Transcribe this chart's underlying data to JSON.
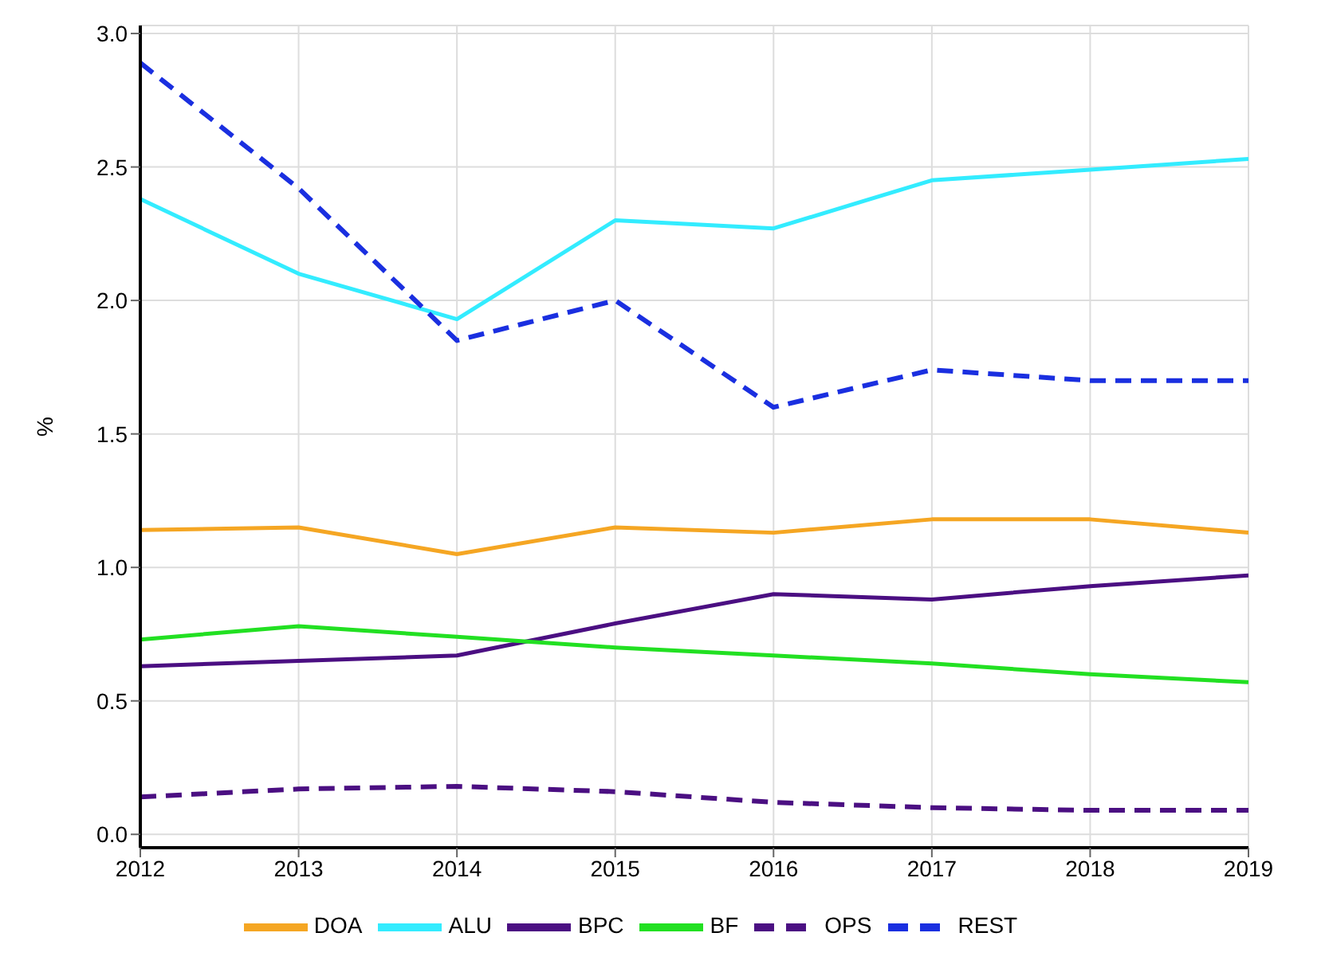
{
  "chart_data": {
    "type": "line",
    "ylabel": "%",
    "x": [
      2012,
      2013,
      2014,
      2015,
      2016,
      2017,
      2018,
      2019
    ],
    "xlim": [
      2012,
      2019
    ],
    "xticks": [
      2012,
      2013,
      2014,
      2015,
      2016,
      2017,
      2018,
      2019
    ],
    "ylim": [
      -0.05,
      3.03
    ],
    "yticks": [
      {
        "value": 0,
        "label": "0.0"
      },
      0.5,
      {
        "value": 1,
        "label": "1.0"
      },
      1.5,
      {
        "value": 2,
        "label": "2.0"
      },
      2.5,
      {
        "value": 3,
        "label": "3.0"
      }
    ],
    "grid": true,
    "legend": "bottom",
    "series": [
      {
        "name": "DOA",
        "color": "#f5a623",
        "line_style": "solid",
        "values": [
          1.14,
          1.15,
          1.05,
          1.15,
          1.13,
          1.18,
          1.18,
          1.13
        ]
      },
      {
        "name": "ALU",
        "color": "#33ecff",
        "line_style": "solid",
        "values": [
          2.38,
          2.1,
          1.93,
          2.3,
          2.27,
          2.45,
          2.49,
          2.53
        ]
      },
      {
        "name": "BPC",
        "color": "#4b0f82",
        "line_style": "solid",
        "values": [
          0.63,
          0.65,
          0.67,
          0.79,
          0.9,
          0.88,
          0.93,
          0.97
        ]
      },
      {
        "name": "BF",
        "color": "#22e022",
        "line_style": "solid",
        "values": [
          0.73,
          0.78,
          0.74,
          0.7,
          0.67,
          0.64,
          0.6,
          0.57
        ]
      },
      {
        "name": "OPS",
        "color": "#4b0f82",
        "line_style": "dashed",
        "values": [
          0.14,
          0.17,
          0.18,
          0.16,
          0.12,
          0.1,
          0.09,
          0.09
        ]
      },
      {
        "name": "REST",
        "color": "#1a2fe0",
        "line_style": "dashed",
        "values": [
          2.89,
          2.42,
          1.85,
          2.0,
          1.6,
          1.74,
          1.7,
          1.7
        ]
      }
    ]
  }
}
